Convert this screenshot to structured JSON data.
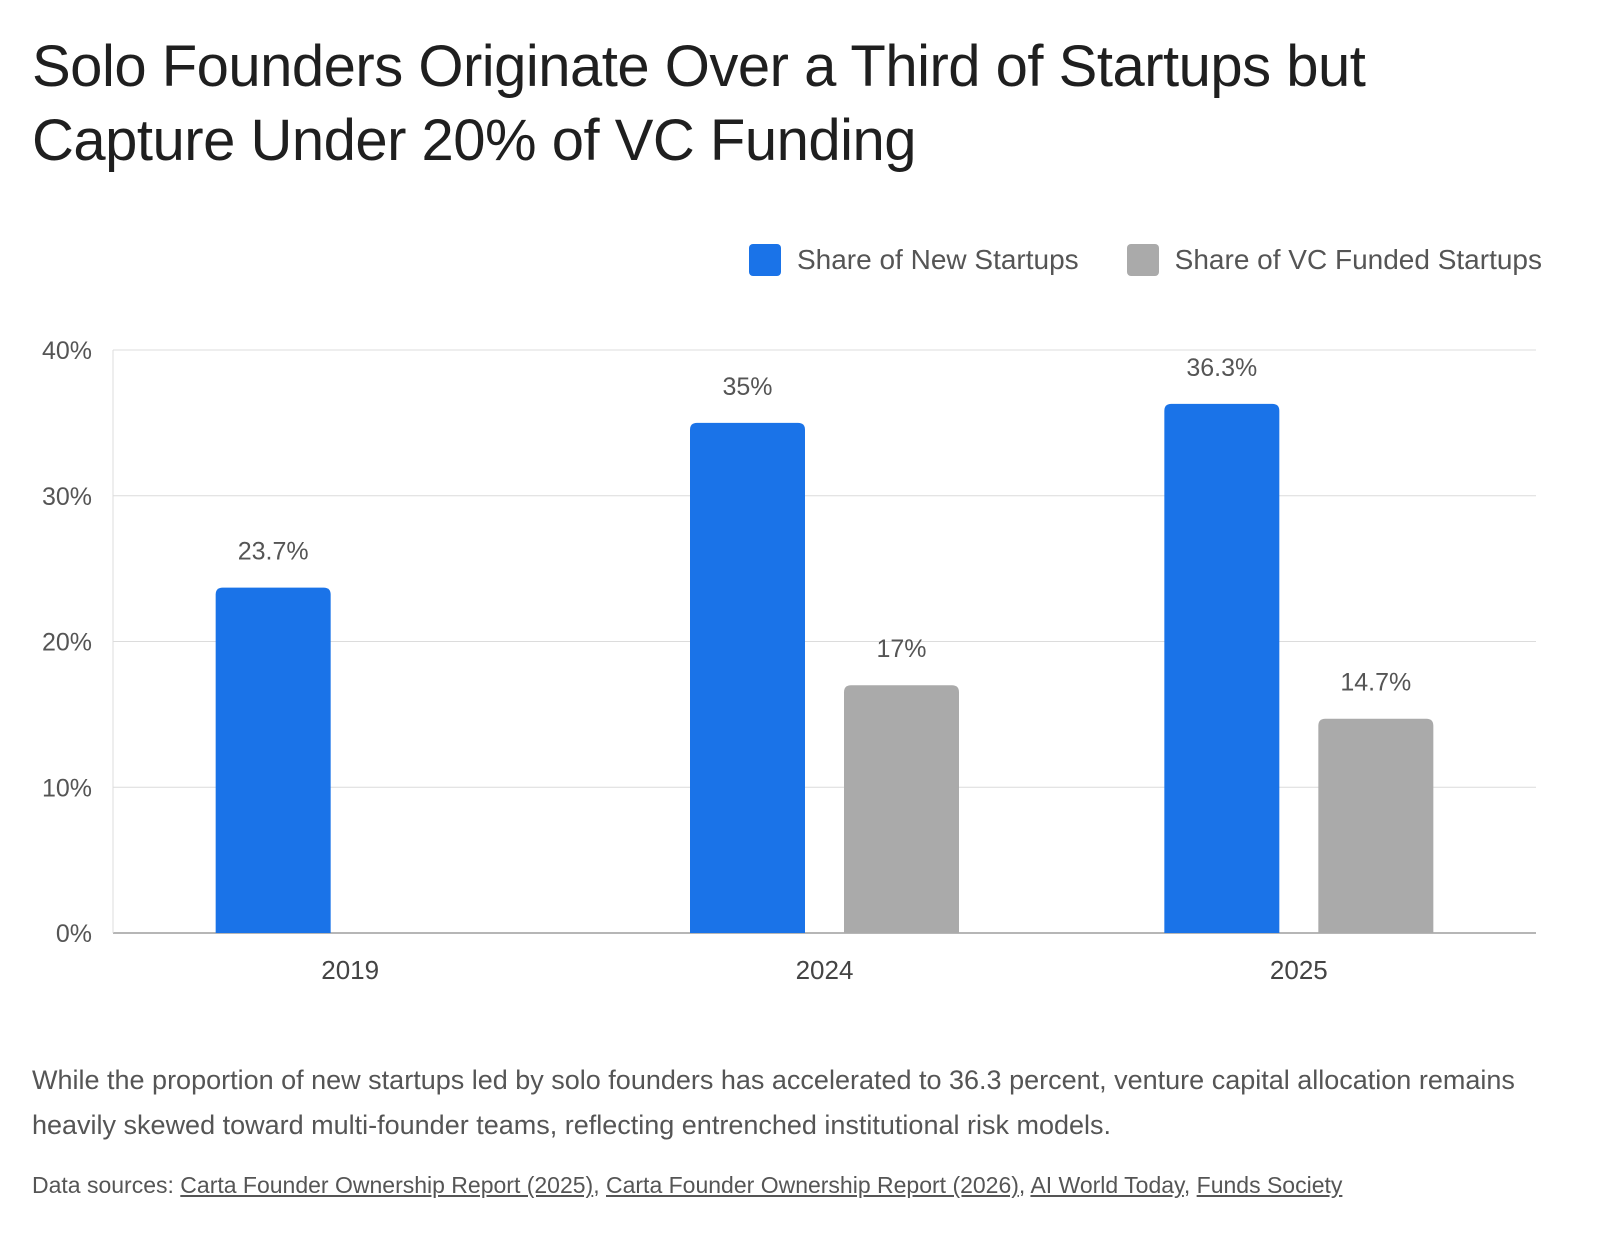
{
  "chart_data": {
    "type": "bar",
    "title": "Solo Founders Originate Over a Third of Startups but Capture Under 20% of VC Funding",
    "categories": [
      "2019",
      "2024",
      "2025"
    ],
    "series": [
      {
        "name": "Share of New Startups",
        "color": "#1a73e8",
        "values": [
          23.7,
          35,
          36.3
        ],
        "labels": [
          "23.7%",
          "35%",
          "36.3%"
        ]
      },
      {
        "name": "Share of VC Funded Startups",
        "color": "#aaaaaa",
        "values": [
          null,
          17,
          14.7
        ],
        "labels": [
          "",
          "17%",
          "14.7%"
        ]
      }
    ],
    "ylim": [
      0,
      40
    ],
    "yticks": [
      0,
      10,
      20,
      30,
      40
    ],
    "ytick_labels": [
      "0%",
      "10%",
      "20%",
      "30%",
      "40%"
    ],
    "xlabel": "",
    "ylabel": "",
    "grid": true,
    "legend_position": "top-right"
  },
  "caption": "While the proportion of new startups led by solo founders has accelerated to 36.3 percent, venture capital allocation remains heavily skewed toward multi-founder teams, reflecting entrenched institutional risk models.",
  "sources": {
    "prefix": "Data sources: ",
    "links": [
      "Carta Founder Ownership Report (2025)",
      "Carta Founder Ownership Report (2026)",
      "AI World Today",
      "Funds Society"
    ]
  }
}
